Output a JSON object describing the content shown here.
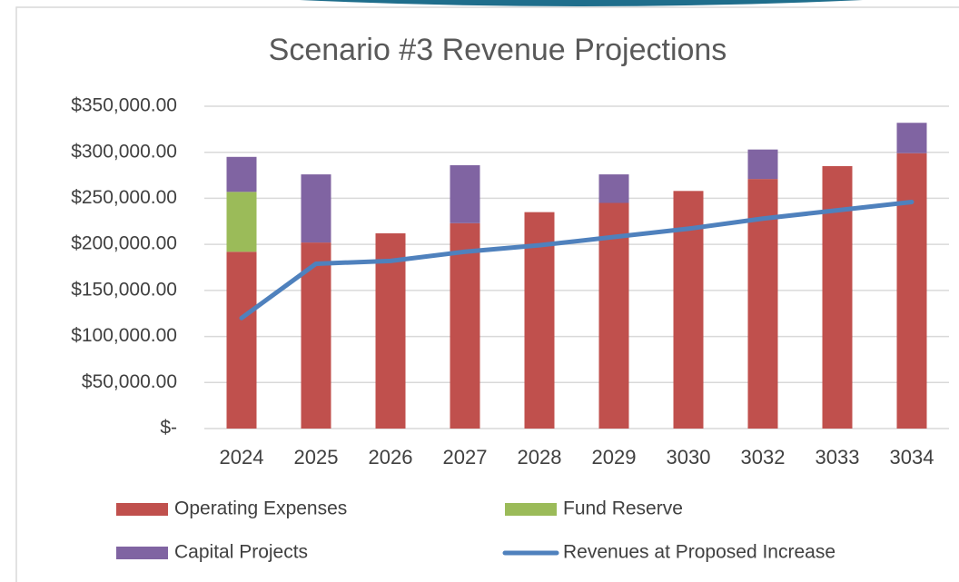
{
  "chart_data": {
    "type": "stacked_bar_line",
    "title": "Scenario #3 Revenue Projections",
    "categories": [
      "2024",
      "2025",
      "2026",
      "2027",
      "2028",
      "2029",
      "3030",
      "3032",
      "3033",
      "3034"
    ],
    "series": [
      {
        "name": "Operating Expenses",
        "color": "#c0504d",
        "kind": "bar",
        "values": [
          192000,
          202000,
          212000,
          223000,
          235000,
          245000,
          258000,
          271000,
          285000,
          299000
        ]
      },
      {
        "name": "Fund Reserve",
        "color": "#9bbb59",
        "kind": "bar",
        "values": [
          65000,
          null,
          null,
          null,
          null,
          null,
          null,
          null,
          null,
          null
        ]
      },
      {
        "name": "Capital Projects",
        "color": "#8064a2",
        "kind": "bar",
        "values": [
          38000,
          74000,
          null,
          63000,
          null,
          31000,
          null,
          32000,
          null,
          33000
        ]
      },
      {
        "name": "Revenues at Proposed Increase",
        "color": "#4f81bd",
        "kind": "line",
        "values": [
          120000,
          179000,
          182000,
          192000,
          199000,
          208000,
          217000,
          228000,
          237000,
          246000
        ]
      }
    ],
    "ylim": [
      0,
      350000
    ],
    "yticks": [
      {
        "value": 0,
        "label": "$-"
      },
      {
        "value": 50000,
        "label": "$50,000.00"
      },
      {
        "value": 100000,
        "label": "$100,000.00"
      },
      {
        "value": 150000,
        "label": "$150,000.00"
      },
      {
        "value": 200000,
        "label": "$200,000.00"
      },
      {
        "value": 250000,
        "label": "$250,000.00"
      },
      {
        "value": 300000,
        "label": "$300,000.00"
      },
      {
        "value": 350000,
        "label": "$350,000.00"
      }
    ],
    "grid": true,
    "legend": "bottom"
  }
}
